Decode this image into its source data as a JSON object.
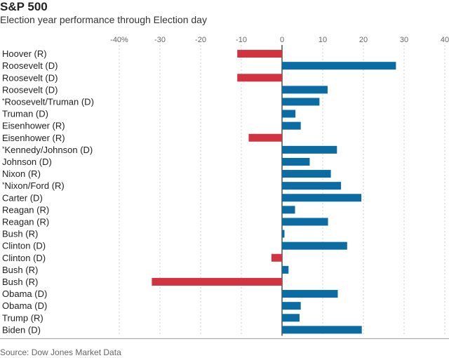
{
  "chart_data": {
    "type": "bar",
    "orientation": "horizontal",
    "title": "S&P 500",
    "subtitle": "Election year performance through Election day",
    "source": "Source: Dow Jones Market Data",
    "xlim": [
      -40,
      40
    ],
    "ticks": [
      -40,
      -30,
      -20,
      -10,
      0,
      10,
      20,
      30,
      40
    ],
    "tick_labels": [
      "-40%",
      "-30",
      "-20",
      "-10",
      "0",
      "10",
      "20",
      "30",
      "40"
    ],
    "grid": true,
    "colors": {
      "positive": "#0a6ca3",
      "negative": "#d13440"
    },
    "categories": [
      "Hoover (R)",
      "Roosevelt (D)",
      "Roosevelt (D)",
      "Roosevelt (D)",
      "*Roosevelt/Truman (D)",
      "Truman (D)",
      "Eisenhower (R)",
      "Eisenhower (R)",
      "*Kennedy/Johnson (D)",
      "Johnson (D)",
      "Nixon (R)",
      "*Nixon/Ford (R)",
      "Carter (D)",
      "Reagan (R)",
      "Reagan (R)",
      "Bush (R)",
      "Clinton (D)",
      "Clinton (D)",
      "Bush (R)",
      "Bush (R)",
      "Obama (D)",
      "Obama (D)",
      "Trump (R)",
      "Biden (D)"
    ],
    "values": [
      -11,
      28,
      -11,
      11.2,
      9.2,
      3.3,
      4.6,
      -8.2,
      13.5,
      6.8,
      12,
      14.5,
      19.5,
      3.2,
      11.3,
      0.6,
      16,
      -2.6,
      1.6,
      -32,
      13.7,
      4.6,
      4.3,
      19.6
    ]
  }
}
